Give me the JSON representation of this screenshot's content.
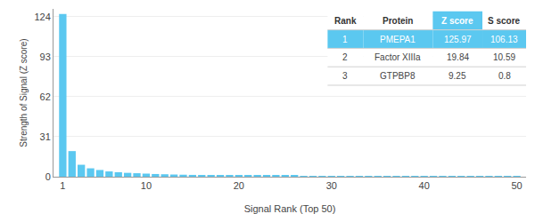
{
  "chart_data": {
    "type": "bar",
    "xlabel": "Signal Rank (Top 50)",
    "ylabel": "Strength of Signal (Z score)",
    "x": [
      1,
      2,
      3,
      4,
      5,
      6,
      7,
      8,
      9,
      10,
      11,
      12,
      13,
      14,
      15,
      16,
      17,
      18,
      19,
      20,
      21,
      22,
      23,
      24,
      25,
      26,
      27,
      28,
      29,
      30,
      31,
      32,
      33,
      34,
      35,
      36,
      37,
      38,
      39,
      40,
      41,
      42,
      43,
      44,
      45,
      46,
      47,
      48,
      49,
      50
    ],
    "values": [
      125.97,
      19.84,
      9.25,
      6.5,
      5.2,
      4.1,
      3.5,
      3.0,
      2.7,
      2.4,
      2.1,
      1.9,
      1.7,
      1.55,
      1.4,
      1.3,
      1.2,
      1.1,
      1.05,
      1.0,
      0.95,
      0.9,
      0.85,
      0.8,
      0.76,
      0.72,
      0.68,
      0.65,
      0.62,
      0.59,
      0.56,
      0.54,
      0.52,
      0.5,
      0.48,
      0.46,
      0.44,
      0.42,
      0.4,
      0.38,
      0.36,
      0.34,
      0.32,
      0.3,
      0.28,
      0.26,
      0.24,
      0.22,
      0.2,
      0.18
    ],
    "color": "#5bc8f0",
    "xlim": [
      0,
      51
    ],
    "xticks": [
      1,
      10,
      20,
      30,
      40,
      50
    ],
    "ylim": [
      0,
      130
    ],
    "yticks": [
      0,
      31,
      62,
      93,
      124
    ],
    "grid": true,
    "table": {
      "columns": [
        "Rank",
        "Protein",
        "Z score",
        "S score"
      ],
      "rows": [
        [
          "1",
          "PMEPA1",
          "125.97",
          "106.13"
        ],
        [
          "2",
          "Factor XIIIa",
          "19.84",
          "10.59"
        ],
        [
          "3",
          "GTPBP8",
          "9.25",
          "0.8"
        ]
      ],
      "color": "#5bc8f0"
    }
  }
}
